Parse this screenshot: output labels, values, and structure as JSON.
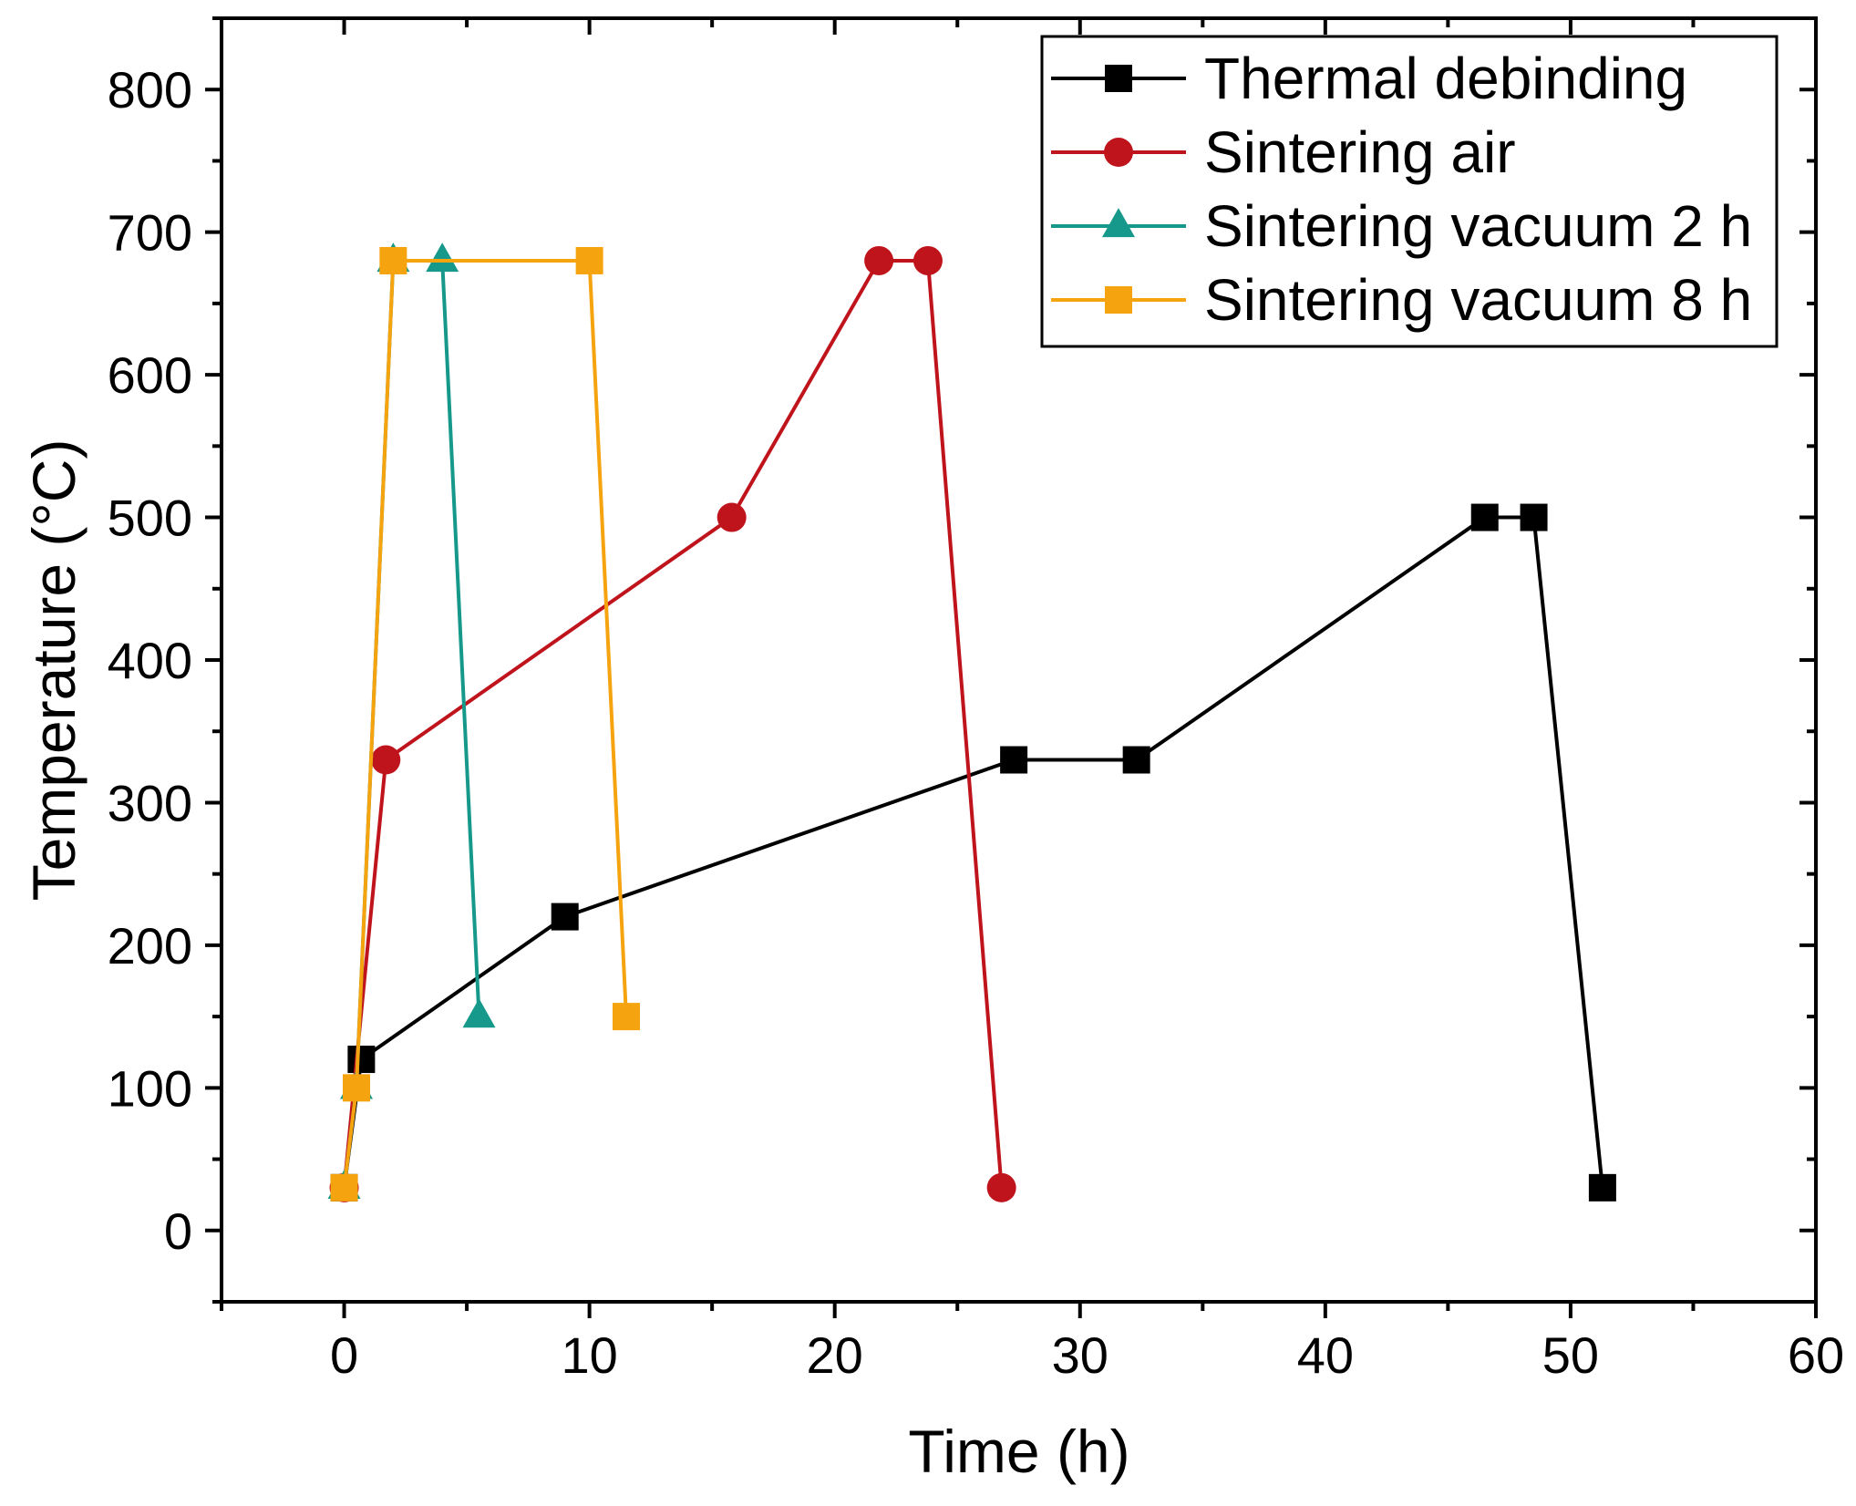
{
  "chart_data": {
    "type": "line",
    "title": "",
    "xlabel": "Time (h)",
    "ylabel": "Temperature (°C)",
    "xlim": [
      -5,
      60
    ],
    "ylim": [
      -50,
      850
    ],
    "x_ticks": [
      0,
      10,
      20,
      30,
      40,
      50,
      60
    ],
    "y_ticks": [
      0,
      100,
      200,
      300,
      400,
      500,
      600,
      700,
      800
    ],
    "x_tick_labels": [
      "0",
      "10",
      "20",
      "30",
      "40",
      "50",
      "60"
    ],
    "y_tick_labels": [
      "0",
      "100",
      "200",
      "300",
      "400",
      "500",
      "600",
      "700",
      "800"
    ],
    "grid": false,
    "legend_position": "top-right",
    "series": [
      {
        "name": "Thermal debinding",
        "color": "#000000",
        "marker": "square",
        "x": [
          0,
          0.7,
          9,
          27.3,
          32.3,
          46.5,
          48.5,
          51.3
        ],
        "y": [
          30,
          120,
          220,
          330,
          330,
          500,
          500,
          30
        ]
      },
      {
        "name": "Sintering air",
        "color": "#c0141c",
        "marker": "circle",
        "x": [
          0,
          1.7,
          15.8,
          21.8,
          23.8,
          26.8
        ],
        "y": [
          30,
          330,
          500,
          680,
          680,
          30
        ]
      },
      {
        "name": "Sintering vacuum 2 h",
        "color": "#16998a",
        "marker": "triangle",
        "x": [
          0,
          0.5,
          2,
          4,
          5.5
        ],
        "y": [
          30,
          100,
          680,
          680,
          150
        ]
      },
      {
        "name": "Sintering vacuum 8 h",
        "color": "#f5a30f",
        "marker": "square",
        "x": [
          0,
          0.5,
          2,
          10,
          11.5
        ],
        "y": [
          30,
          100,
          680,
          680,
          150
        ]
      }
    ]
  }
}
